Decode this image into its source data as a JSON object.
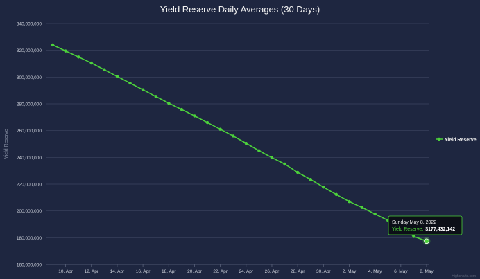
{
  "chart_data": {
    "type": "line",
    "title": "Yield Reserve Daily Averages (30 Days)",
    "ylabel": "Yield Reserve",
    "xlabel": "",
    "ylim": [
      160000000,
      340000000
    ],
    "yticks": [
      160000000,
      180000000,
      200000000,
      220000000,
      240000000,
      260000000,
      280000000,
      300000000,
      320000000,
      340000000
    ],
    "ytick_labels": [
      "160,000,000",
      "180,000,000",
      "200,000,000",
      "220,000,000",
      "240,000,000",
      "260,000,000",
      "280,000,000",
      "300,000,000",
      "320,000,000",
      "340,000,000"
    ],
    "x": [
      "2022-04-09",
      "2022-04-10",
      "2022-04-11",
      "2022-04-12",
      "2022-04-13",
      "2022-04-14",
      "2022-04-15",
      "2022-04-16",
      "2022-04-17",
      "2022-04-18",
      "2022-04-19",
      "2022-04-20",
      "2022-04-21",
      "2022-04-22",
      "2022-04-23",
      "2022-04-24",
      "2022-04-25",
      "2022-04-26",
      "2022-04-27",
      "2022-04-28",
      "2022-04-29",
      "2022-04-30",
      "2022-05-01",
      "2022-05-02",
      "2022-05-03",
      "2022-05-04",
      "2022-05-05",
      "2022-05-06",
      "2022-05-07",
      "2022-05-08"
    ],
    "xlim": [
      "2022-04-09",
      "2022-05-08"
    ],
    "xticks": [
      "2022-04-10",
      "2022-04-12",
      "2022-04-14",
      "2022-04-16",
      "2022-04-18",
      "2022-04-20",
      "2022-04-22",
      "2022-04-24",
      "2022-04-26",
      "2022-04-28",
      "2022-04-30",
      "2022-05-02",
      "2022-05-04",
      "2022-05-06",
      "2022-05-08"
    ],
    "xtick_labels": [
      "10. Apr",
      "12. Apr",
      "14. Apr",
      "16. Apr",
      "18. Apr",
      "20. Apr",
      "22. Apr",
      "24. Apr",
      "26. Apr",
      "28. Apr",
      "30. Apr",
      "2. May",
      "4. May",
      "6. May",
      "8. May"
    ],
    "series": [
      {
        "name": "Yield Reserve",
        "color": "#4cd13b",
        "values": [
          324000000,
          319500000,
          315000000,
          310500000,
          305500000,
          300500000,
          295500000,
          290500000,
          285500000,
          280500000,
          275800000,
          271000000,
          266000000,
          261000000,
          256000000,
          250500000,
          245000000,
          239800000,
          235000000,
          228800000,
          223500000,
          217800000,
          212300000,
          207000000,
          202500000,
          197700000,
          193000000,
          188300000,
          181000000,
          177432142
        ]
      }
    ],
    "grid": true,
    "legend": {
      "placement": "right",
      "entries": [
        "Yield Reserve"
      ]
    },
    "tooltip": {
      "date": "Sunday May 8, 2022",
      "series_label": "Yield Reserve:",
      "value": "$177,432,142",
      "point_index": 29
    },
    "credits": "Highcharts.com",
    "colors": {
      "background": "#1e2640",
      "grid": "#3d4560",
      "line": "#4cd13b",
      "tooltip_bg": "#0c0f17"
    }
  }
}
